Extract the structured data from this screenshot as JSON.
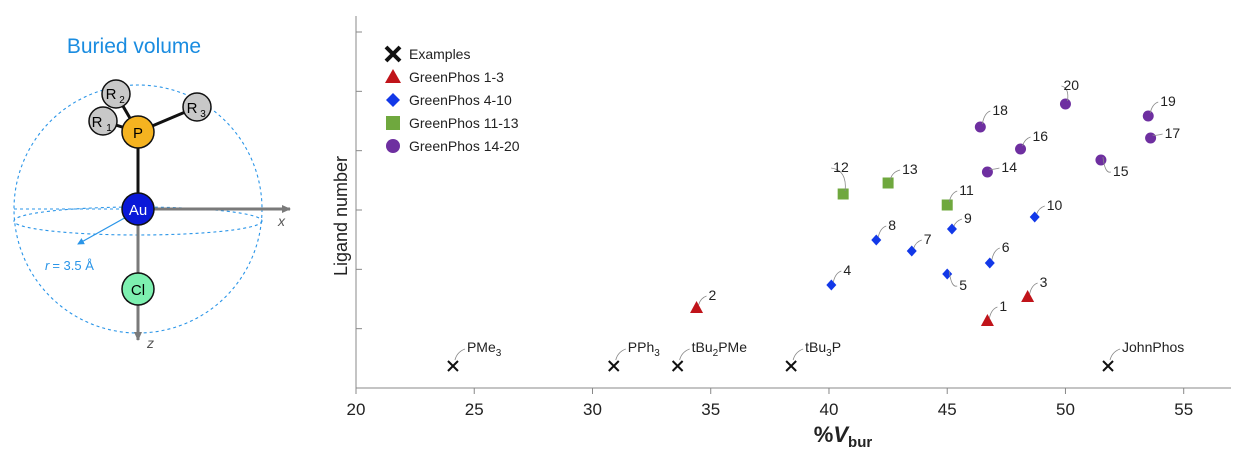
{
  "diagram": {
    "title": "Buried volume",
    "radius_prefix": "r",
    "radius_value": "= 3.5 Å",
    "axis_x": "x",
    "axis_z": "z",
    "atoms": {
      "au": "Au",
      "cl": "Cl",
      "p": "P",
      "r1_base": "R",
      "r1_sub": "1",
      "r2_base": "R",
      "r2_sub": "2",
      "r3_base": "R",
      "r3_sub": "3"
    },
    "colors": {
      "title": "#1a8ce0",
      "au": "#0a18d8",
      "cl": "#7df0b0",
      "p": "#f5b320",
      "r": "#c8c8c8",
      "dashed": "#2a95e8",
      "axis": "#7a7a7a"
    }
  },
  "chart_data": {
    "type": "scatter",
    "xlabel_prefix": "%",
    "xlabel_main": "V",
    "xlabel_sub": "bur",
    "ylabel": "Ligand number",
    "xlim": [
      20,
      57
    ],
    "xticks": [
      20,
      25,
      30,
      35,
      40,
      45,
      50,
      55
    ],
    "y_gridlines_unlabeled": 6,
    "legend_position": "top-left",
    "series": [
      {
        "name": "Examples",
        "marker": "cross",
        "color": "#111111",
        "points": [
          {
            "x": 24.1,
            "label_base": "PMe",
            "label_sub": "3",
            "label_tail": ""
          },
          {
            "x": 30.9,
            "label_base": "PPh",
            "label_sub": "3",
            "label_tail": ""
          },
          {
            "x": 33.6,
            "label_base": "tBu",
            "label_sub": "2",
            "label_tail": "PMe"
          },
          {
            "x": 38.4,
            "label_base": "tBu",
            "label_sub": "3",
            "label_tail": "P"
          },
          {
            "x": 51.8,
            "label_base": "JohnPhos",
            "label_sub": "",
            "label_tail": ""
          }
        ]
      },
      {
        "name": "GreenPhos 1-3",
        "marker": "triangle",
        "color": "#c0141a",
        "points": [
          {
            "label": "1",
            "x": 46.7
          },
          {
            "label": "2",
            "x": 34.4
          },
          {
            "label": "3",
            "x": 48.4
          }
        ]
      },
      {
        "name": "GreenPhos 4-10",
        "marker": "diamond",
        "color": "#1238e8",
        "points": [
          {
            "label": "4",
            "x": 40.1
          },
          {
            "label": "5",
            "x": 45.0
          },
          {
            "label": "6",
            "x": 46.8
          },
          {
            "label": "7",
            "x": 43.5
          },
          {
            "label": "8",
            "x": 42.0
          },
          {
            "label": "9",
            "x": 45.2
          },
          {
            "label": "10",
            "x": 48.7
          }
        ]
      },
      {
        "name": "GreenPhos 11-13",
        "marker": "square",
        "color": "#6fa83e",
        "points": [
          {
            "label": "11",
            "x": 45.0
          },
          {
            "label": "12",
            "x": 40.6
          },
          {
            "label": "13",
            "x": 42.5
          }
        ]
      },
      {
        "name": "GreenPhos 14-20",
        "marker": "circle",
        "color": "#6e2fa0",
        "points": [
          {
            "label": "14",
            "x": 46.7
          },
          {
            "label": "15",
            "x": 51.5
          },
          {
            "label": "16",
            "x": 48.1
          },
          {
            "label": "17",
            "x": 53.6
          },
          {
            "label": "18",
            "x": 46.4
          },
          {
            "label": "19",
            "x": 53.5
          },
          {
            "label": "20",
            "x": 50.0
          }
        ]
      }
    ]
  }
}
